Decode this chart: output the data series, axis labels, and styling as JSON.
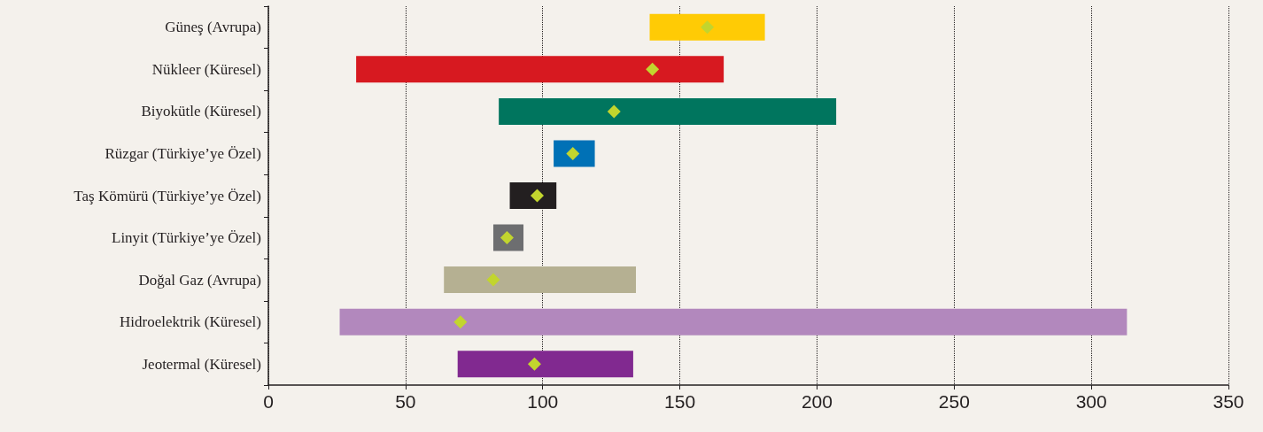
{
  "chart_data": {
    "type": "bar",
    "orientation": "horizontal",
    "categories": [
      "Güneş (Avrupa)",
      "Nükleer (Küresel)",
      "Biyokütle (Küresel)",
      "Rüzgar (Türkiye’ye Özel)",
      "Taş Kömürü (Türkiye’ye Özel)",
      "Linyit (Türkiye’ye Özel)",
      "Doğal Gaz (Avrupa)",
      "Hidroelektrik (Küresel)",
      "Jeotermal (Küresel)"
    ],
    "series": [
      {
        "base": [
          139,
          32,
          84,
          104,
          88,
          82,
          64,
          26,
          69
        ],
        "values": [
          42,
          134,
          123,
          15,
          17,
          11,
          70,
          287,
          64
        ],
        "colors": [
          "#ffcb05",
          "#d71920",
          "#00755e",
          "#0071b6",
          "#231f20",
          "#6d6e70",
          "#b5b092",
          "#b288bd",
          "#812990"
        ]
      },
      {
        "type": "scatter",
        "x": [
          "Güneş (Avrupa)",
          "Nükleer (Küresel)",
          "Biyokütle (Küresel)",
          "Rüzgar (Türkiye’ye Özel)",
          "Taş Kömürü (Türkiye’ye Özel)",
          "Linyit (Türkiye’ye Özel)",
          "Doğal Gaz (Avrupa)",
          "Hidroelektrik (Küresel)",
          "Jeotermal (Küresel)"
        ],
        "values": [
          160,
          140,
          126,
          111,
          98,
          87,
          82,
          70,
          97
        ],
        "color": "#c2d52e",
        "marker": "diamond"
      }
    ],
    "xlim": [
      0,
      350
    ],
    "xticks": [
      0,
      50,
      100,
      150,
      200,
      250,
      300,
      350
    ],
    "grid": "x"
  }
}
